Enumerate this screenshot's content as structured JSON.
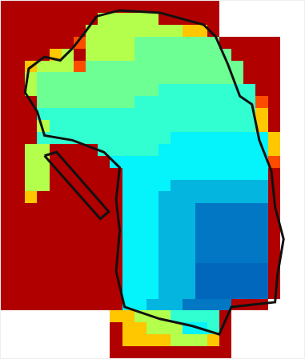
{
  "chart_data": {
    "type": "heatmap",
    "color": "Jet",
    "tick_labels": false,
    "xlim": [
      -0.5,
      24.5
    ],
    "ylim": [
      29.5,
      -0.5
    ],
    "color_range": [
      0,
      1
    ],
    "cells": [
      [
        0.95,
        0.95,
        0.95,
        0.95,
        0.95,
        0.95,
        0.95,
        0.95,
        0.95,
        0.95,
        0.95,
        0.95,
        0.95,
        0.95,
        0.95,
        0.95,
        0.95,
        0.95,
        null,
        null,
        null,
        null,
        null,
        null,
        null
      ],
      [
        0.95,
        0.95,
        0.95,
        0.95,
        0.95,
        0.95,
        0.95,
        0.95,
        0.55,
        0.55,
        0.55,
        0.55,
        0.55,
        0.95,
        0.95,
        0.95,
        0.95,
        0.95,
        null,
        null,
        null,
        null,
        null,
        null,
        null
      ],
      [
        0.95,
        0.95,
        0.95,
        0.95,
        0.95,
        0.95,
        0.95,
        0.55,
        0.55,
        0.55,
        0.55,
        0.55,
        0.55,
        0.55,
        0.55,
        0.68,
        0.68,
        0.95,
        null,
        null,
        null,
        null,
        null,
        null,
        null
      ],
      [
        0.95,
        0.95,
        0.95,
        0.95,
        0.95,
        0.95,
        0.8,
        0.55,
        0.55,
        0.55,
        0.55,
        0.48,
        0.48,
        0.48,
        0.48,
        0.48,
        0.48,
        0.48,
        0.95,
        0.95,
        0.95,
        0.95,
        0.95,
        null,
        null
      ],
      [
        0.95,
        0.95,
        0.95,
        0.95,
        0.68,
        0.55,
        0.95,
        0.55,
        0.55,
        0.55,
        0.55,
        0.48,
        0.48,
        0.48,
        0.48,
        0.48,
        0.48,
        0.48,
        0.48,
        0.95,
        0.95,
        0.95,
        0.95,
        null,
        null
      ],
      [
        0.95,
        0.95,
        0.68,
        0.55,
        0.55,
        0.55,
        0.8,
        0.48,
        0.48,
        0.48,
        0.48,
        0.48,
        0.48,
        0.48,
        0.48,
        0.48,
        0.48,
        0.48,
        0.48,
        0.48,
        0.95,
        0.95,
        0.95,
        null,
        null
      ],
      [
        0.95,
        0.95,
        0.55,
        0.48,
        0.48,
        0.48,
        0.48,
        0.48,
        0.48,
        0.48,
        0.48,
        0.48,
        0.48,
        0.48,
        0.48,
        0.48,
        0.48,
        0.48,
        0.48,
        0.48,
        0.95,
        0.95,
        0.95,
        null,
        null
      ],
      [
        0.95,
        0.95,
        0.55,
        0.48,
        0.48,
        0.48,
        0.48,
        0.48,
        0.48,
        0.48,
        0.48,
        0.48,
        0.48,
        0.42,
        0.42,
        0.42,
        0.42,
        0.42,
        0.42,
        0.42,
        0.42,
        0.95,
        0.95,
        null,
        null
      ],
      [
        0.95,
        0.95,
        0.95,
        0.48,
        0.48,
        0.48,
        0.48,
        0.48,
        0.48,
        0.48,
        0.48,
        0.42,
        0.42,
        0.42,
        0.42,
        0.42,
        0.42,
        0.42,
        0.42,
        0.42,
        0.42,
        0.8,
        0.95,
        null,
        null
      ],
      [
        0.95,
        0.95,
        0.95,
        0.42,
        0.42,
        0.42,
        0.42,
        0.42,
        0.42,
        0.42,
        0.42,
        0.42,
        0.42,
        0.42,
        0.42,
        0.42,
        0.42,
        0.42,
        0.42,
        0.42,
        0.42,
        0.68,
        0.95,
        null,
        null
      ],
      [
        0.95,
        0.95,
        0.95,
        0.55,
        0.42,
        0.42,
        0.42,
        0.42,
        0.42,
        0.42,
        0.42,
        0.42,
        0.42,
        0.42,
        0.42,
        0.42,
        0.42,
        0.42,
        0.42,
        0.42,
        0.42,
        0.68,
        0.95,
        null,
        null
      ],
      [
        0.95,
        0.95,
        0.95,
        0.42,
        0.42,
        0.42,
        0.42,
        0.42,
        0.42,
        0.42,
        0.42,
        0.42,
        0.42,
        0.42,
        0.36,
        0.36,
        0.36,
        0.36,
        0.36,
        0.36,
        0.36,
        0.36,
        0.68,
        null,
        null
      ],
      [
        0.95,
        0.95,
        0.55,
        0.55,
        0.95,
        0.95,
        0.95,
        0.95,
        0.42,
        0.42,
        0.42,
        0.42,
        0.42,
        0.36,
        0.36,
        0.36,
        0.36,
        0.36,
        0.36,
        0.36,
        0.36,
        0.36,
        0.68,
        null,
        null
      ],
      [
        0.95,
        0.95,
        0.55,
        0.55,
        0.95,
        0.95,
        0.95,
        0.95,
        0.95,
        0.36,
        0.36,
        0.36,
        0.36,
        0.36,
        0.36,
        0.36,
        0.36,
        0.36,
        0.36,
        0.36,
        0.36,
        0.36,
        0.8,
        null,
        null
      ],
      [
        0.95,
        0.95,
        0.55,
        0.55,
        0.95,
        0.95,
        0.95,
        0.95,
        0.95,
        0.95,
        0.36,
        0.36,
        0.36,
        0.36,
        0.36,
        0.36,
        0.36,
        0.36,
        0.36,
        0.36,
        0.36,
        0.36,
        0.95,
        null,
        null
      ],
      [
        0.95,
        0.95,
        0.55,
        0.55,
        0.95,
        0.95,
        0.95,
        0.95,
        0.95,
        0.95,
        0.36,
        0.36,
        0.36,
        0.36,
        0.28,
        0.28,
        0.28,
        0.28,
        0.28,
        0.28,
        0.28,
        0.28,
        0.95,
        null,
        null
      ],
      [
        0.95,
        0.95,
        0.68,
        0.95,
        0.95,
        0.95,
        0.95,
        0.95,
        0.95,
        0.95,
        0.36,
        0.36,
        0.36,
        0.28,
        0.28,
        0.28,
        0.28,
        0.28,
        0.28,
        0.28,
        0.28,
        0.28,
        0.95,
        null,
        null
      ],
      [
        0.95,
        0.95,
        0.95,
        0.95,
        0.95,
        0.95,
        0.95,
        0.95,
        0.95,
        0.95,
        0.36,
        0.36,
        0.36,
        0.28,
        0.28,
        0.28,
        0.2,
        0.2,
        0.2,
        0.2,
        0.2,
        0.2,
        0.95,
        null,
        null
      ],
      [
        0.95,
        0.95,
        0.95,
        0.95,
        0.95,
        0.95,
        0.95,
        0.95,
        0.95,
        0.95,
        0.36,
        0.36,
        0.36,
        0.28,
        0.28,
        0.28,
        0.2,
        0.2,
        0.2,
        0.2,
        0.2,
        0.2,
        0.95,
        null,
        null
      ],
      [
        0.95,
        0.95,
        0.95,
        0.95,
        0.95,
        0.95,
        0.95,
        0.95,
        0.95,
        0.95,
        0.36,
        0.36,
        0.36,
        0.28,
        0.28,
        0.28,
        0.2,
        0.2,
        0.2,
        0.2,
        0.2,
        0.2,
        0.95,
        null,
        null
      ],
      [
        0.95,
        0.95,
        0.95,
        0.95,
        0.95,
        0.95,
        0.95,
        0.95,
        0.95,
        0.95,
        0.36,
        0.36,
        0.36,
        0.28,
        0.28,
        0.28,
        0.2,
        0.2,
        0.2,
        0.2,
        0.2,
        0.2,
        0.95,
        null,
        null
      ],
      [
        0.95,
        0.95,
        0.95,
        0.95,
        0.95,
        0.95,
        0.95,
        0.95,
        0.95,
        0.95,
        0.36,
        0.36,
        0.36,
        0.28,
        0.28,
        0.28,
        0.2,
        0.2,
        0.2,
        0.2,
        0.2,
        0.2,
        0.95,
        null,
        null
      ],
      [
        0.95,
        0.95,
        0.95,
        0.95,
        0.95,
        0.95,
        0.95,
        0.95,
        0.95,
        0.95,
        0.36,
        0.36,
        0.36,
        0.28,
        0.28,
        0.28,
        0.18,
        0.18,
        0.18,
        0.18,
        0.18,
        0.18,
        0.95,
        null,
        null
      ],
      [
        0.95,
        0.95,
        0.95,
        0.95,
        0.95,
        0.95,
        0.95,
        0.95,
        0.95,
        0.95,
        0.36,
        0.36,
        0.36,
        0.28,
        0.28,
        0.28,
        0.18,
        0.18,
        0.18,
        0.18,
        0.18,
        0.18,
        0.95,
        null,
        null
      ],
      [
        0.95,
        0.95,
        0.95,
        0.95,
        0.95,
        0.95,
        0.95,
        0.95,
        0.95,
        0.95,
        0.36,
        0.36,
        0.36,
        0.28,
        0.28,
        0.28,
        0.18,
        0.18,
        0.18,
        0.18,
        0.18,
        0.18,
        0.95,
        null,
        null
      ],
      [
        0.95,
        0.95,
        0.95,
        0.95,
        0.95,
        0.95,
        0.95,
        0.95,
        0.95,
        0.95,
        0.36,
        0.36,
        0.28,
        0.28,
        0.28,
        0.2,
        0.2,
        0.2,
        0.2,
        0.95,
        0.95,
        0.95,
        null,
        null,
        null
      ],
      [
        null,
        null,
        null,
        null,
        null,
        null,
        null,
        null,
        null,
        0.68,
        0.68,
        0.55,
        0.55,
        0.55,
        0.42,
        0.42,
        0.42,
        0.42,
        0.95,
        null,
        null,
        null,
        null,
        null,
        null
      ],
      [
        null,
        null,
        null,
        null,
        null,
        null,
        null,
        null,
        null,
        0.95,
        0.68,
        0.68,
        0.55,
        0.55,
        0.55,
        0.36,
        0.36,
        0.42,
        0.95,
        null,
        null,
        null,
        null,
        null,
        null
      ],
      [
        null,
        null,
        null,
        null,
        null,
        null,
        null,
        null,
        null,
        0.95,
        0.68,
        0.68,
        0.68,
        0.68,
        0.55,
        0.55,
        0.55,
        0.68,
        0.95,
        null,
        null,
        null,
        null,
        null,
        null
      ],
      [
        null,
        null,
        null,
        null,
        null,
        null,
        null,
        null,
        null,
        0.95,
        0.95,
        0.95,
        0.95,
        0.95,
        0.95,
        0.95,
        0.95,
        0.95,
        0.95,
        null,
        null,
        null,
        null,
        null,
        null
      ]
    ],
    "outline": [
      {
        "x": [
          7.4,
          9.3,
          12.6,
          16.2,
          17.2,
          18.2,
          19.2,
          20.2,
          20.8,
          21.8,
          22.1,
          22.8,
          22.3,
          22.1,
          18.5,
          17.5,
          15.3,
          12.6,
          9.7,
          9.0,
          9.3,
          9.0,
          9.3,
          8.0,
          5.4,
          3.1,
          2.5,
          1.5,
          1.8,
          3.1,
          4.4,
          5.4,
          6.4,
          7.4
        ],
        "y": [
          0.8,
          0.3,
          0.5,
          1.5,
          2.5,
          4.8,
          7.5,
          8.2,
          11.2,
          13.8,
          16.8,
          19.5,
          22.5,
          24.8,
          25.2,
          27.5,
          26.8,
          26.2,
          25.2,
          22.2,
          18.8,
          16.2,
          13.5,
          12.2,
          11.2,
          10.8,
          8.8,
          7.2,
          5.2,
          4.2,
          4.5,
          3.5,
          2.2,
          0.8
        ]
      },
      {
        "x": [
          3.1,
          4.1,
          8.4,
          7.7,
          3.1
        ],
        "y": [
          12.5,
          12.2,
          17.2,
          17.8,
          12.5
        ]
      }
    ]
  }
}
